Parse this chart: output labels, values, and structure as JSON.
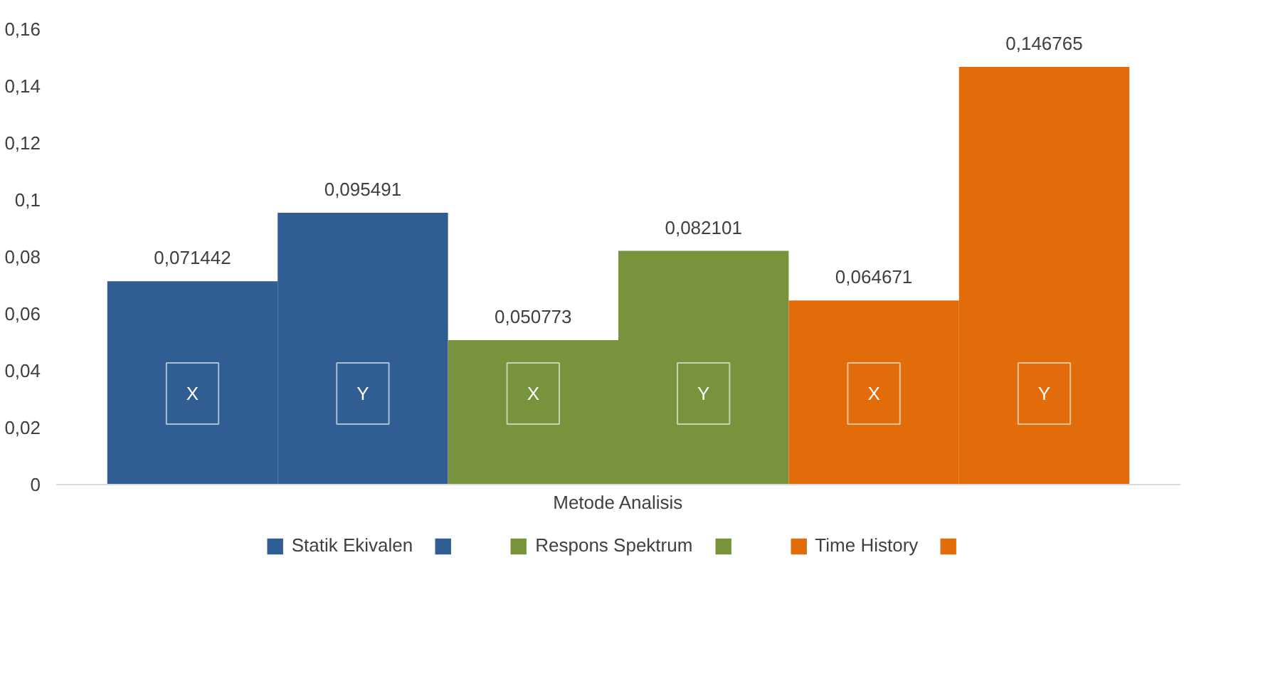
{
  "chart_data": {
    "type": "bar",
    "xlabel": "Metode Analisis",
    "categories": [
      null
    ],
    "series": [
      {
        "name": "Statik Ekivalen",
        "color": "#2f5d94",
        "values": [
          0.071442
        ]
      },
      {
        "color": "#2f5d94",
        "values": [
          0.095491
        ]
      },
      {
        "name": "Respons Spektrum",
        "color": "#77933c",
        "values": [
          0.050773
        ]
      },
      {
        "color": "#77933c",
        "values": [
          0.082101
        ]
      },
      {
        "name": "Time History",
        "color": "#e36c0a",
        "values": [
          0.064671
        ]
      },
      {
        "color": "#e36c0a",
        "values": [
          0.146765
        ]
      }
    ],
    "ylim": [
      0,
      0.16
    ],
    "yticks": [
      0,
      {
        "value": 0.02,
        "label": "0,02"
      },
      {
        "value": 0.04,
        "label": "0,04"
      },
      {
        "value": 0.06,
        "label": "0,06"
      },
      {
        "value": 0.08,
        "label": "0,08"
      },
      {
        "value": 0.1,
        "label": "0,1"
      },
      {
        "value": 0.12,
        "label": "0,12"
      },
      {
        "value": 0.14,
        "label": "0,14"
      },
      {
        "value": 0.16,
        "label": "0,16"
      }
    ],
    "value_labels": [
      "0,071442",
      "0,095491",
      "0,050773",
      "0,082101",
      "0,064671",
      "0,146765"
    ],
    "annotations": [
      "X",
      "Y",
      "X",
      "Y",
      "X",
      "Y"
    ],
    "grid": false,
    "legend": "bottom"
  }
}
